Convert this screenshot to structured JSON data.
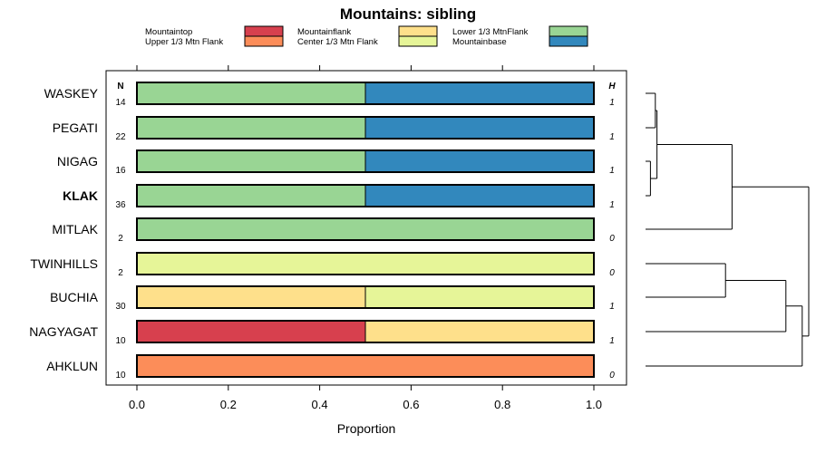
{
  "chart_data": {
    "type": "bar",
    "orientation": "horizontal",
    "stacked": true,
    "title": "Mountains: sibling",
    "xlabel": "Proportion",
    "ylabel": "",
    "xlim": [
      0,
      1
    ],
    "xticks": [
      0,
      0.2,
      0.4,
      0.6,
      0.8,
      1
    ],
    "xtick_labels": [
      "0.0",
      "0.2",
      "0.4",
      "0.6",
      "0.8",
      "1.0"
    ],
    "n_header": "N",
    "h_header": "H",
    "legend_position": "top",
    "legend": [
      {
        "name": "Mountaintop",
        "color": "#d7404e"
      },
      {
        "name": "Upper 1/3 Mtn Flank",
        "color": "#fc8d59"
      },
      {
        "name": "Mountainflank",
        "color": "#fee08b"
      },
      {
        "name": "Center 1/3 Mtn Flank",
        "color": "#e6f598"
      },
      {
        "name": "Lower 1/3 MtnFlank",
        "color": "#99d594"
      },
      {
        "name": "Mountainbase",
        "color": "#3288bd"
      }
    ],
    "categories": [
      "WASKEY",
      "PEGATI",
      "NIGAG",
      "KLAK",
      "MITLAK",
      "TWINHILLS",
      "BUCHIA",
      "NAGYAGAT",
      "AHKLUN"
    ],
    "highlighted_category": "KLAK",
    "N": [
      "14",
      "22",
      "16",
      "36",
      "2",
      "2",
      "30",
      "10",
      "10"
    ],
    "H": [
      "1",
      "1",
      "1",
      "1",
      "0",
      "0",
      "1",
      "1",
      "0"
    ],
    "series": [
      {
        "name": "Mountaintop",
        "values": [
          0,
          0,
          0,
          0,
          0,
          0,
          0,
          0.5,
          0
        ]
      },
      {
        "name": "Upper 1/3 Mtn Flank",
        "values": [
          0,
          0,
          0,
          0,
          0,
          0,
          0,
          0,
          1.0
        ]
      },
      {
        "name": "Mountainflank",
        "values": [
          0,
          0,
          0,
          0,
          0,
          0,
          0.5,
          0.5,
          0
        ]
      },
      {
        "name": "Center 1/3 Mtn Flank",
        "values": [
          0,
          0,
          0,
          0,
          0,
          1.0,
          0.5,
          0,
          0
        ]
      },
      {
        "name": "Lower 1/3 MtnFlank",
        "values": [
          0.5,
          0.5,
          0.5,
          0.5,
          1.0,
          0,
          0,
          0,
          0
        ]
      },
      {
        "name": "Mountainbase",
        "values": [
          0.5,
          0.5,
          0.5,
          0.5,
          0,
          0,
          0,
          0,
          0
        ]
      }
    ],
    "dendrogram": {
      "type": "dendrogram",
      "leaves": [
        "WASKEY",
        "PEGATI",
        "NIGAG",
        "KLAK",
        "MITLAK",
        "TWINHILLS",
        "BUCHIA",
        "NAGYAGAT",
        "AHKLUN"
      ],
      "merges": [
        {
          "a": "L0",
          "b": "L1",
          "height": 0.06
        },
        {
          "a": "L2",
          "b": "L3",
          "height": 0.03
        },
        {
          "a": "C0",
          "b": "C1",
          "height": 0.07
        },
        {
          "a": "C2",
          "b": "L4",
          "height": 0.53
        },
        {
          "a": "L5",
          "b": "L6",
          "height": 0.49
        },
        {
          "a": "C4",
          "b": "L7",
          "height": 0.86
        },
        {
          "a": "C5",
          "b": "L8",
          "height": 0.96
        },
        {
          "a": "C3",
          "b": "C6",
          "height": 1.0
        }
      ]
    }
  }
}
